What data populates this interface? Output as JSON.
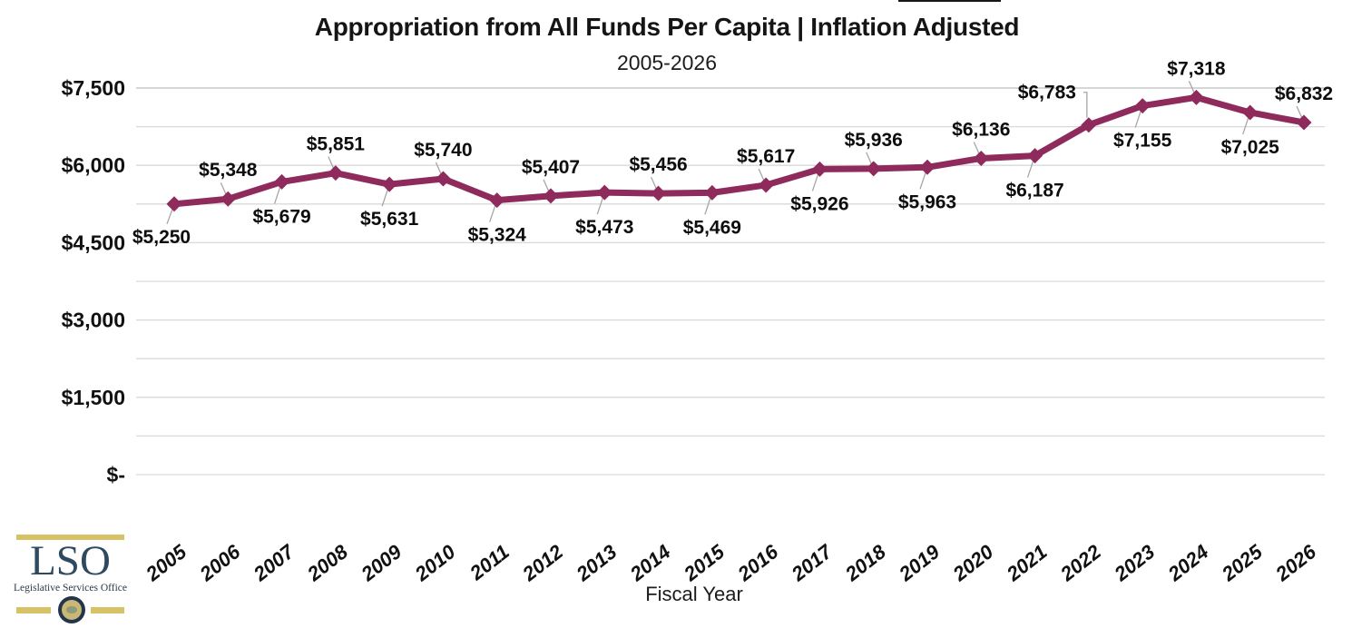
{
  "chart_data": {
    "type": "line",
    "title": "Appropriation from All Funds Per Capita | Inflation Adjusted",
    "subtitle": "2005-2026",
    "xlabel": "Fiscal Year",
    "ylabel": "",
    "categories": [
      "2005",
      "2006",
      "2007",
      "2008",
      "2009",
      "2010",
      "2011",
      "2012",
      "2013",
      "2014",
      "2015",
      "2016",
      "2017",
      "2018",
      "2019",
      "2020",
      "2021",
      "2022",
      "2023",
      "2024",
      "2025",
      "2026"
    ],
    "series": [
      {
        "name": "Appropriation from All Funds Per Capita (Inflation Adjusted)",
        "color": "#8E2A5C",
        "values": [
          5250,
          5348,
          5679,
          5851,
          5631,
          5740,
          5324,
          5407,
          5473,
          5456,
          5469,
          5617,
          5926,
          5936,
          5963,
          6136,
          6187,
          6783,
          7155,
          7318,
          7025,
          6832
        ],
        "point_labels": [
          "$5,250",
          "$5,348",
          "$5,679",
          "$5,851",
          "$5,631",
          "$5,740",
          "$5,324",
          "$5,407",
          "$5,473",
          "$5,456",
          "$5,469",
          "$5,617",
          "$5,926",
          "$5,936",
          "$5,963",
          "$6,136",
          "$6,187",
          "$6,783",
          "$7,155",
          "$7,318",
          "$7,025",
          "$6,832"
        ]
      }
    ],
    "ylim": [
      0,
      7500
    ],
    "ytick_labels": [
      "$-",
      "$1,500",
      "$3,000",
      "$4,500",
      "$6,000",
      "$7,500"
    ],
    "ytick_values": [
      0,
      1500,
      3000,
      4500,
      6000,
      7500
    ],
    "minor_grid_step": 750,
    "grid": true,
    "legend": "none",
    "marker": "diamond",
    "gridline_color": "#d9d9d9",
    "top_gridline_color": "#bdbdbd",
    "leader_line_color": "#a6a6a6",
    "label_overrides": {
      "0": {
        "dx": -14,
        "dy": 36
      },
      "17": {
        "dx": -46,
        "dy": -36,
        "elbow": true
      }
    }
  },
  "logo": {
    "acronym": "LSO",
    "caption": "Legislative Services Office",
    "gold": "#d7c267",
    "navy": "#2e4a61"
  }
}
